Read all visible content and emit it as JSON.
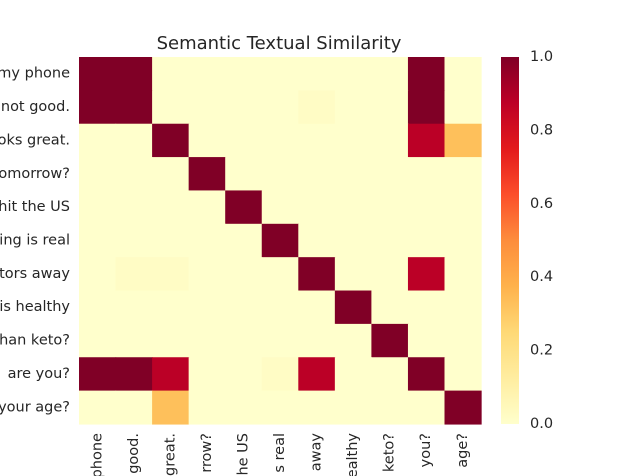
{
  "chart_data": {
    "type": "heatmap",
    "title": "Semantic Textual Similarity",
    "row_labels": [
      "my phone",
      "not good.",
      "oks great.",
      "omorrow?",
      "hit the US",
      "ing is real",
      "tors away",
      "is healthy",
      "han keto?",
      "are you?",
      "your age?"
    ],
    "col_labels": [
      "phone",
      "good.",
      "great.",
      "rrow?",
      "he US",
      "s real",
      "away",
      "ealthy",
      "keto?",
      "you?",
      "age?"
    ],
    "values": [
      [
        1.0,
        1.0,
        0.0,
        0.0,
        0.0,
        0.0,
        0.0,
        0.0,
        0.0,
        1.0,
        0.0
      ],
      [
        1.0,
        1.0,
        0.0,
        0.0,
        0.0,
        0.0,
        0.02,
        0.0,
        0.0,
        1.0,
        0.0
      ],
      [
        0.0,
        0.0,
        1.0,
        0.0,
        0.0,
        0.0,
        0.0,
        0.0,
        0.0,
        0.88,
        0.33
      ],
      [
        0.0,
        0.0,
        0.0,
        1.0,
        0.0,
        0.0,
        0.0,
        0.0,
        0.0,
        0.0,
        0.0
      ],
      [
        0.0,
        0.0,
        0.0,
        0.0,
        1.0,
        0.0,
        0.0,
        0.0,
        0.0,
        0.0,
        0.0
      ],
      [
        0.0,
        0.0,
        0.0,
        0.0,
        0.0,
        1.0,
        0.0,
        0.0,
        0.0,
        0.0,
        0.0
      ],
      [
        0.0,
        0.02,
        0.02,
        0.0,
        0.0,
        0.0,
        1.0,
        0.0,
        0.0,
        0.88,
        0.0
      ],
      [
        0.0,
        0.0,
        0.0,
        0.0,
        0.0,
        0.0,
        0.0,
        1.0,
        0.0,
        0.0,
        0.0
      ],
      [
        0.0,
        0.0,
        0.0,
        0.0,
        0.0,
        0.0,
        0.0,
        0.0,
        1.0,
        0.0,
        0.0
      ],
      [
        1.0,
        1.0,
        0.88,
        0.0,
        0.0,
        0.02,
        0.88,
        0.0,
        0.0,
        1.0,
        0.0
      ],
      [
        0.0,
        0.0,
        0.33,
        0.0,
        0.0,
        0.0,
        0.0,
        0.0,
        0.0,
        0.0,
        1.0
      ]
    ],
    "colormap": "YlOrRd",
    "colorbar": {
      "range": [
        0.0,
        1.0
      ],
      "ticks": [
        "0.0",
        "0.2",
        "0.4",
        "0.6",
        "0.8",
        "1.0"
      ]
    },
    "colors": {
      "low": "#ffffcc",
      "high": "#800026"
    }
  }
}
